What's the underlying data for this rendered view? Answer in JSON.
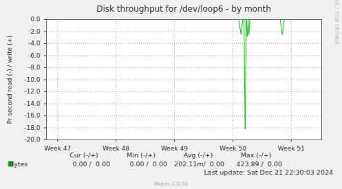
{
  "chart_data": {
    "type": "line",
    "title": "Disk throughput for /dev/loop6 - by month",
    "y_label": "Pr second read (-) / write (+)",
    "xlim": [
      46.81,
      51.52
    ],
    "xticks": [
      {
        "value": 47,
        "label": "Week 47"
      },
      {
        "value": 48,
        "label": "Week 48"
      },
      {
        "value": 49,
        "label": "Week 49"
      },
      {
        "value": 50,
        "label": "Week 50"
      },
      {
        "value": 51,
        "label": "Week 51"
      }
    ],
    "ylim": [
      -20,
      0
    ],
    "yticks": [
      {
        "value": 0,
        "label": "0.0"
      },
      {
        "value": -2,
        "label": "-2.0"
      },
      {
        "value": -4,
        "label": "-4.0"
      },
      {
        "value": -6,
        "label": "-6.0"
      },
      {
        "value": -8,
        "label": "-8.0"
      },
      {
        "value": -10,
        "label": "-10.0"
      },
      {
        "value": -12,
        "label": "-12.0"
      },
      {
        "value": -14,
        "label": "-14.0"
      },
      {
        "value": -16,
        "label": "-16.0"
      },
      {
        "value": -18,
        "label": "-18.0"
      },
      {
        "value": -20,
        "label": "-20.0"
      }
    ],
    "grid": true,
    "stats_columns": [
      "Cur (-/+)",
      "Min (-/+)",
      "Avg (-/+)",
      "Max (-/+)"
    ],
    "series": [
      {
        "name": "Bytes",
        "color": "#00cc00",
        "x": [
          46.81,
          50.1,
          50.14,
          50.17,
          50.19,
          50.21,
          50.23,
          50.245,
          50.26,
          50.275,
          50.29,
          50.81,
          50.845,
          50.88,
          51.52
        ],
        "values": [
          0,
          0,
          -2.5,
          0,
          0,
          -18.2,
          0,
          -2.8,
          0,
          -2.5,
          0,
          0,
          -2.5,
          0,
          0
        ],
        "stats": [
          "0.00 /  0.00",
          "0.00 /  0.00",
          "202.11m/  0.00",
          "423.89 /  0.00"
        ]
      }
    ],
    "last_update": "Last update: Sat Dec 21 22:30:03 2024",
    "footer": "Munin 2.0.56",
    "watermark": "RRDTOOL / TOBI OETIKER"
  }
}
